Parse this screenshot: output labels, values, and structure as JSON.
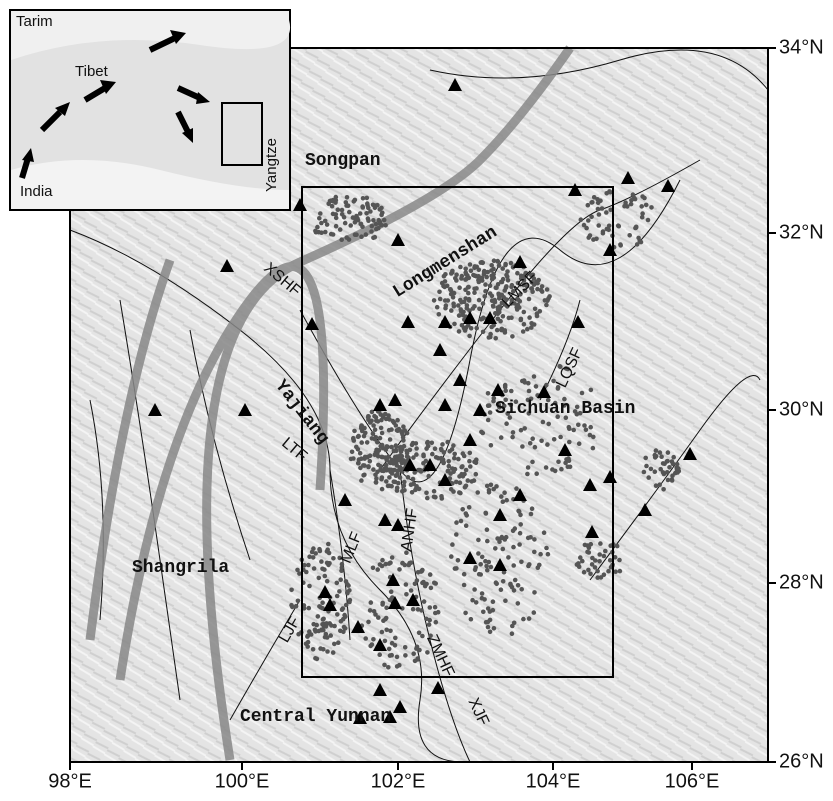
{
  "map": {
    "inset": {
      "labels": [
        "Tarim",
        "Tibet",
        "India",
        "Yangtze"
      ]
    },
    "regions": [
      "Songpan",
      "Longmenshan",
      "Sichuan Basin",
      "Yajiang",
      "Shangrila",
      "Central Yunnan"
    ],
    "faults": [
      "XSHF",
      "LMSF",
      "LQSF",
      "LTF",
      "MLF",
      "ANHF",
      "ZMHF",
      "XJF",
      "LJF"
    ],
    "lat_labels": [
      "34°N",
      "32°N",
      "30°N",
      "28°N",
      "26°N"
    ],
    "lon_labels": [
      "98°E",
      "100°E",
      "102°E",
      "104°E",
      "106°E"
    ]
  }
}
